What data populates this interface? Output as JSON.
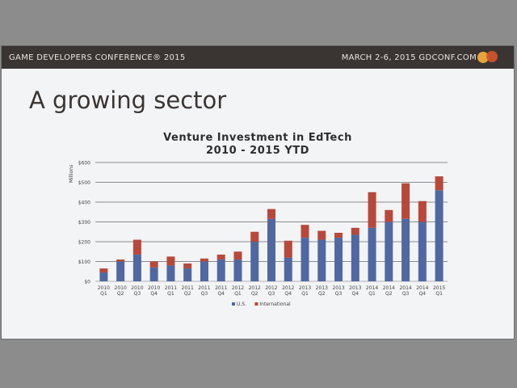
{
  "header": {
    "left": "GAME DEVELOPERS CONFERENCE® 2015",
    "right": "MARCH 2-6, 2015  GDCONF.COM",
    "logo_colors": [
      "#e8a33a",
      "#d2552c"
    ]
  },
  "slide": {
    "title": "A growing sector"
  },
  "chart_data": {
    "type": "bar",
    "stacked": true,
    "title": "Venture Investment in EdTech",
    "subtitle": "2010 - 2015 YTD",
    "ylabel": "Millions",
    "ylim": [
      0,
      600
    ],
    "yticks": [
      0,
      100,
      200,
      300,
      400,
      500,
      600
    ],
    "ytick_labels": [
      "$0",
      "$100",
      "$200",
      "$300",
      "$400",
      "$500",
      "$600"
    ],
    "grid": true,
    "legend_position": "bottom",
    "categories": [
      [
        "2010",
        "Q1"
      ],
      [
        "2010",
        "Q2"
      ],
      [
        "2010",
        "Q3"
      ],
      [
        "2010",
        "Q4"
      ],
      [
        "2011",
        "Q1"
      ],
      [
        "2011",
        "Q2"
      ],
      [
        "2011",
        "Q3"
      ],
      [
        "2011",
        "Q4"
      ],
      [
        "2012",
        "Q1"
      ],
      [
        "2012",
        "Q2"
      ],
      [
        "2012",
        "Q3"
      ],
      [
        "2012",
        "Q4"
      ],
      [
        "2013",
        "Q1"
      ],
      [
        "2013",
        "Q2"
      ],
      [
        "2013",
        "Q3"
      ],
      [
        "2013",
        "Q4"
      ],
      [
        "2014",
        "Q1"
      ],
      [
        "2014",
        "Q2"
      ],
      [
        "2014",
        "Q3"
      ],
      [
        "2014",
        "Q4"
      ],
      [
        "2015",
        "Q1"
      ]
    ],
    "series": [
      {
        "name": "U.S.",
        "color": "#5068a2",
        "values": [
          45,
          100,
          135,
          70,
          80,
          65,
          100,
          110,
          110,
          200,
          315,
          120,
          220,
          210,
          220,
          235,
          270,
          300,
          315,
          300,
          460
        ]
      },
      {
        "name": "International",
        "color": "#b8483b",
        "values": [
          20,
          10,
          75,
          30,
          45,
          25,
          15,
          25,
          40,
          50,
          50,
          85,
          65,
          45,
          25,
          35,
          180,
          60,
          180,
          105,
          70
        ]
      }
    ]
  }
}
